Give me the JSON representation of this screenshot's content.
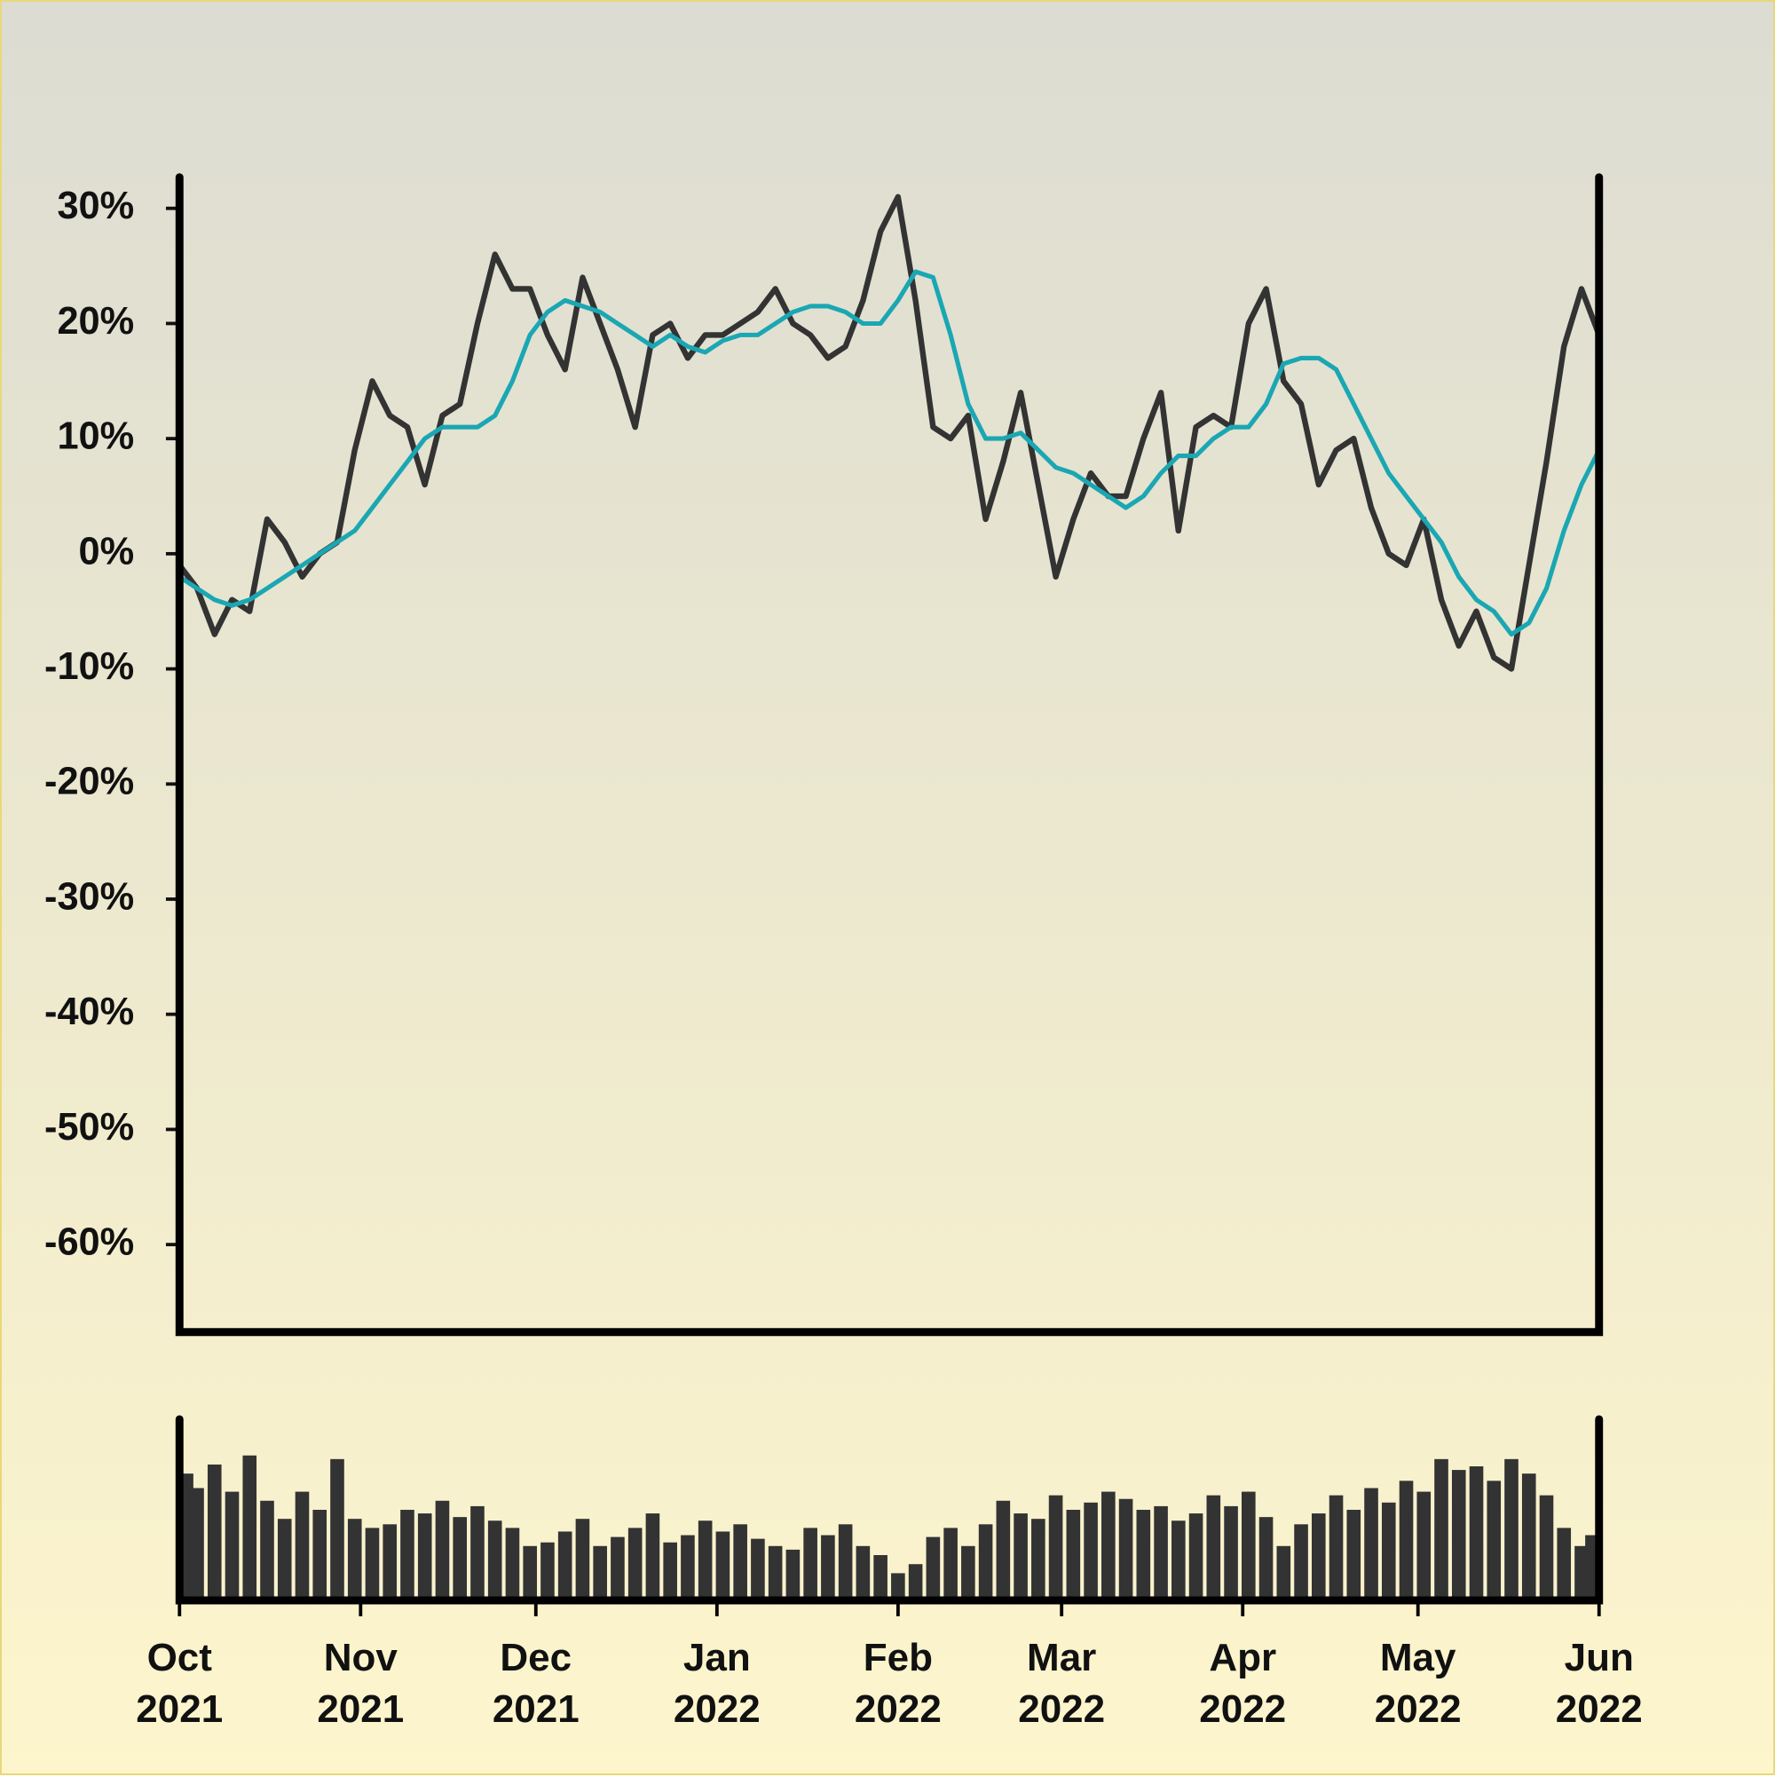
{
  "chart_data": [
    {
      "type": "line",
      "x": [
        0,
        3,
        6,
        9,
        12,
        15,
        18,
        21,
        24,
        27,
        30,
        33,
        36,
        39,
        42,
        45,
        48,
        51,
        54,
        57,
        60,
        63,
        66,
        69,
        72,
        75,
        78,
        81,
        84,
        87,
        90,
        93,
        96,
        99,
        102,
        105,
        108,
        111,
        114,
        117,
        120,
        123,
        126,
        129,
        132,
        135,
        138,
        141,
        144,
        147,
        150,
        153,
        156,
        159,
        162,
        165,
        168,
        171,
        174,
        177,
        180,
        183,
        186,
        189,
        192,
        195,
        198,
        201,
        204,
        207,
        210,
        213,
        216,
        219,
        222,
        225,
        228,
        231,
        234,
        237,
        240,
        243
      ],
      "series": [
        {
          "name": "Return",
          "color": "#333333",
          "values": [
            -1,
            -3,
            -7,
            -4,
            -5,
            3,
            1,
            -2,
            0,
            1,
            9,
            15,
            12,
            11,
            6,
            12,
            13,
            20,
            26,
            23,
            23,
            19,
            16,
            24,
            20,
            16,
            11,
            19,
            20,
            17,
            19,
            19,
            20,
            21,
            23,
            20,
            19,
            17,
            18,
            22,
            28,
            31,
            22,
            11,
            10,
            12,
            3,
            8,
            14,
            6,
            -2,
            3,
            7,
            5,
            5,
            10,
            14,
            2,
            11,
            12,
            11,
            20,
            23,
            15,
            13,
            6,
            9,
            10,
            4,
            0,
            -1,
            3,
            -4,
            -8,
            -5,
            -9,
            -10,
            -1,
            8,
            18,
            23,
            19
          ]
        },
        {
          "name": "Moving average",
          "color": "#1aa7b3",
          "values": [
            -2,
            -3,
            -4,
            -4.5,
            -4,
            -3,
            -2,
            -1,
            0,
            1,
            2,
            4,
            6,
            8,
            10,
            11,
            11,
            11,
            12,
            15,
            19,
            21,
            22,
            21.5,
            21,
            20,
            19,
            18,
            19,
            18,
            17.5,
            18.5,
            19,
            19,
            20,
            21,
            21.5,
            21.5,
            21,
            20,
            20,
            22,
            24.5,
            24,
            19,
            13,
            10,
            10,
            10.5,
            9,
            7.5,
            7,
            6,
            5,
            4,
            5,
            7,
            8.5,
            8.5,
            10,
            11,
            11,
            13,
            16.5,
            17,
            17,
            16,
            13,
            10,
            7,
            5,
            3,
            1,
            -2,
            -4,
            -5,
            -7,
            -6,
            -3,
            2,
            6,
            9
          ]
        }
      ],
      "xlim": [
        0,
        243
      ],
      "ylim": [
        -67.6,
        32.7
      ],
      "yticks": [
        {
          "value": 30,
          "label": "30%"
        },
        {
          "value": 20,
          "label": "20%"
        },
        {
          "value": 10,
          "label": "10%"
        },
        {
          "value": 0,
          "label": "0%"
        },
        {
          "value": -10,
          "label": "-10%"
        },
        {
          "value": -20,
          "label": "-20%"
        },
        {
          "value": -30,
          "label": "-30%"
        },
        {
          "value": -40,
          "label": "-40%"
        },
        {
          "value": -50,
          "label": "-50%"
        },
        {
          "value": -60,
          "label": "-60%"
        }
      ]
    },
    {
      "type": "bar",
      "x": [
        0,
        3,
        6,
        9,
        12,
        15,
        18,
        21,
        24,
        27,
        30,
        33,
        36,
        39,
        42,
        45,
        48,
        51,
        54,
        57,
        60,
        63,
        66,
        69,
        72,
        75,
        78,
        81,
        84,
        87,
        90,
        93,
        96,
        99,
        102,
        105,
        108,
        111,
        114,
        117,
        120,
        123,
        126,
        129,
        132,
        135,
        138,
        141,
        144,
        147,
        150,
        153,
        156,
        159,
        162,
        165,
        168,
        171,
        174,
        177,
        180,
        183,
        186,
        189,
        192,
        195,
        198,
        201,
        204,
        207,
        210,
        213,
        216,
        219,
        222,
        225,
        228,
        231,
        234,
        237,
        240,
        243
      ],
      "values": [
        70,
        62,
        75,
        60,
        80,
        55,
        45,
        60,
        50,
        78,
        45,
        40,
        42,
        50,
        48,
        55,
        46,
        52,
        44,
        40,
        30,
        32,
        38,
        45,
        30,
        35,
        40,
        48,
        32,
        36,
        44,
        38,
        42,
        34,
        30,
        28,
        40,
        36,
        42,
        30,
        25,
        15,
        20,
        35,
        40,
        30,
        42,
        55,
        48,
        45,
        58,
        50,
        54,
        60,
        56,
        50,
        52,
        44,
        48,
        58,
        52,
        60,
        46,
        30,
        42,
        48,
        58,
        50,
        62,
        54,
        66,
        60,
        78,
        72,
        74,
        66,
        78,
        70,
        58,
        40,
        30,
        36
      ],
      "color": "#333333",
      "xlim": [
        0,
        243
      ],
      "ylim": [
        0,
        100
      ],
      "xticks": [
        {
          "value": 0,
          "label": "Oct 2021"
        },
        {
          "value": 31,
          "label": "Nov 2021"
        },
        {
          "value": 61,
          "label": "Dec 2021"
        },
        {
          "value": 92,
          "label": "Jan 2022"
        },
        {
          "value": 123,
          "label": "Feb 2022"
        },
        {
          "value": 151,
          "label": "Mar 2022"
        },
        {
          "value": 182,
          "label": "Apr 2022"
        },
        {
          "value": 212,
          "label": "May 2022"
        },
        {
          "value": 243,
          "label": "Jun 2022"
        }
      ]
    }
  ]
}
